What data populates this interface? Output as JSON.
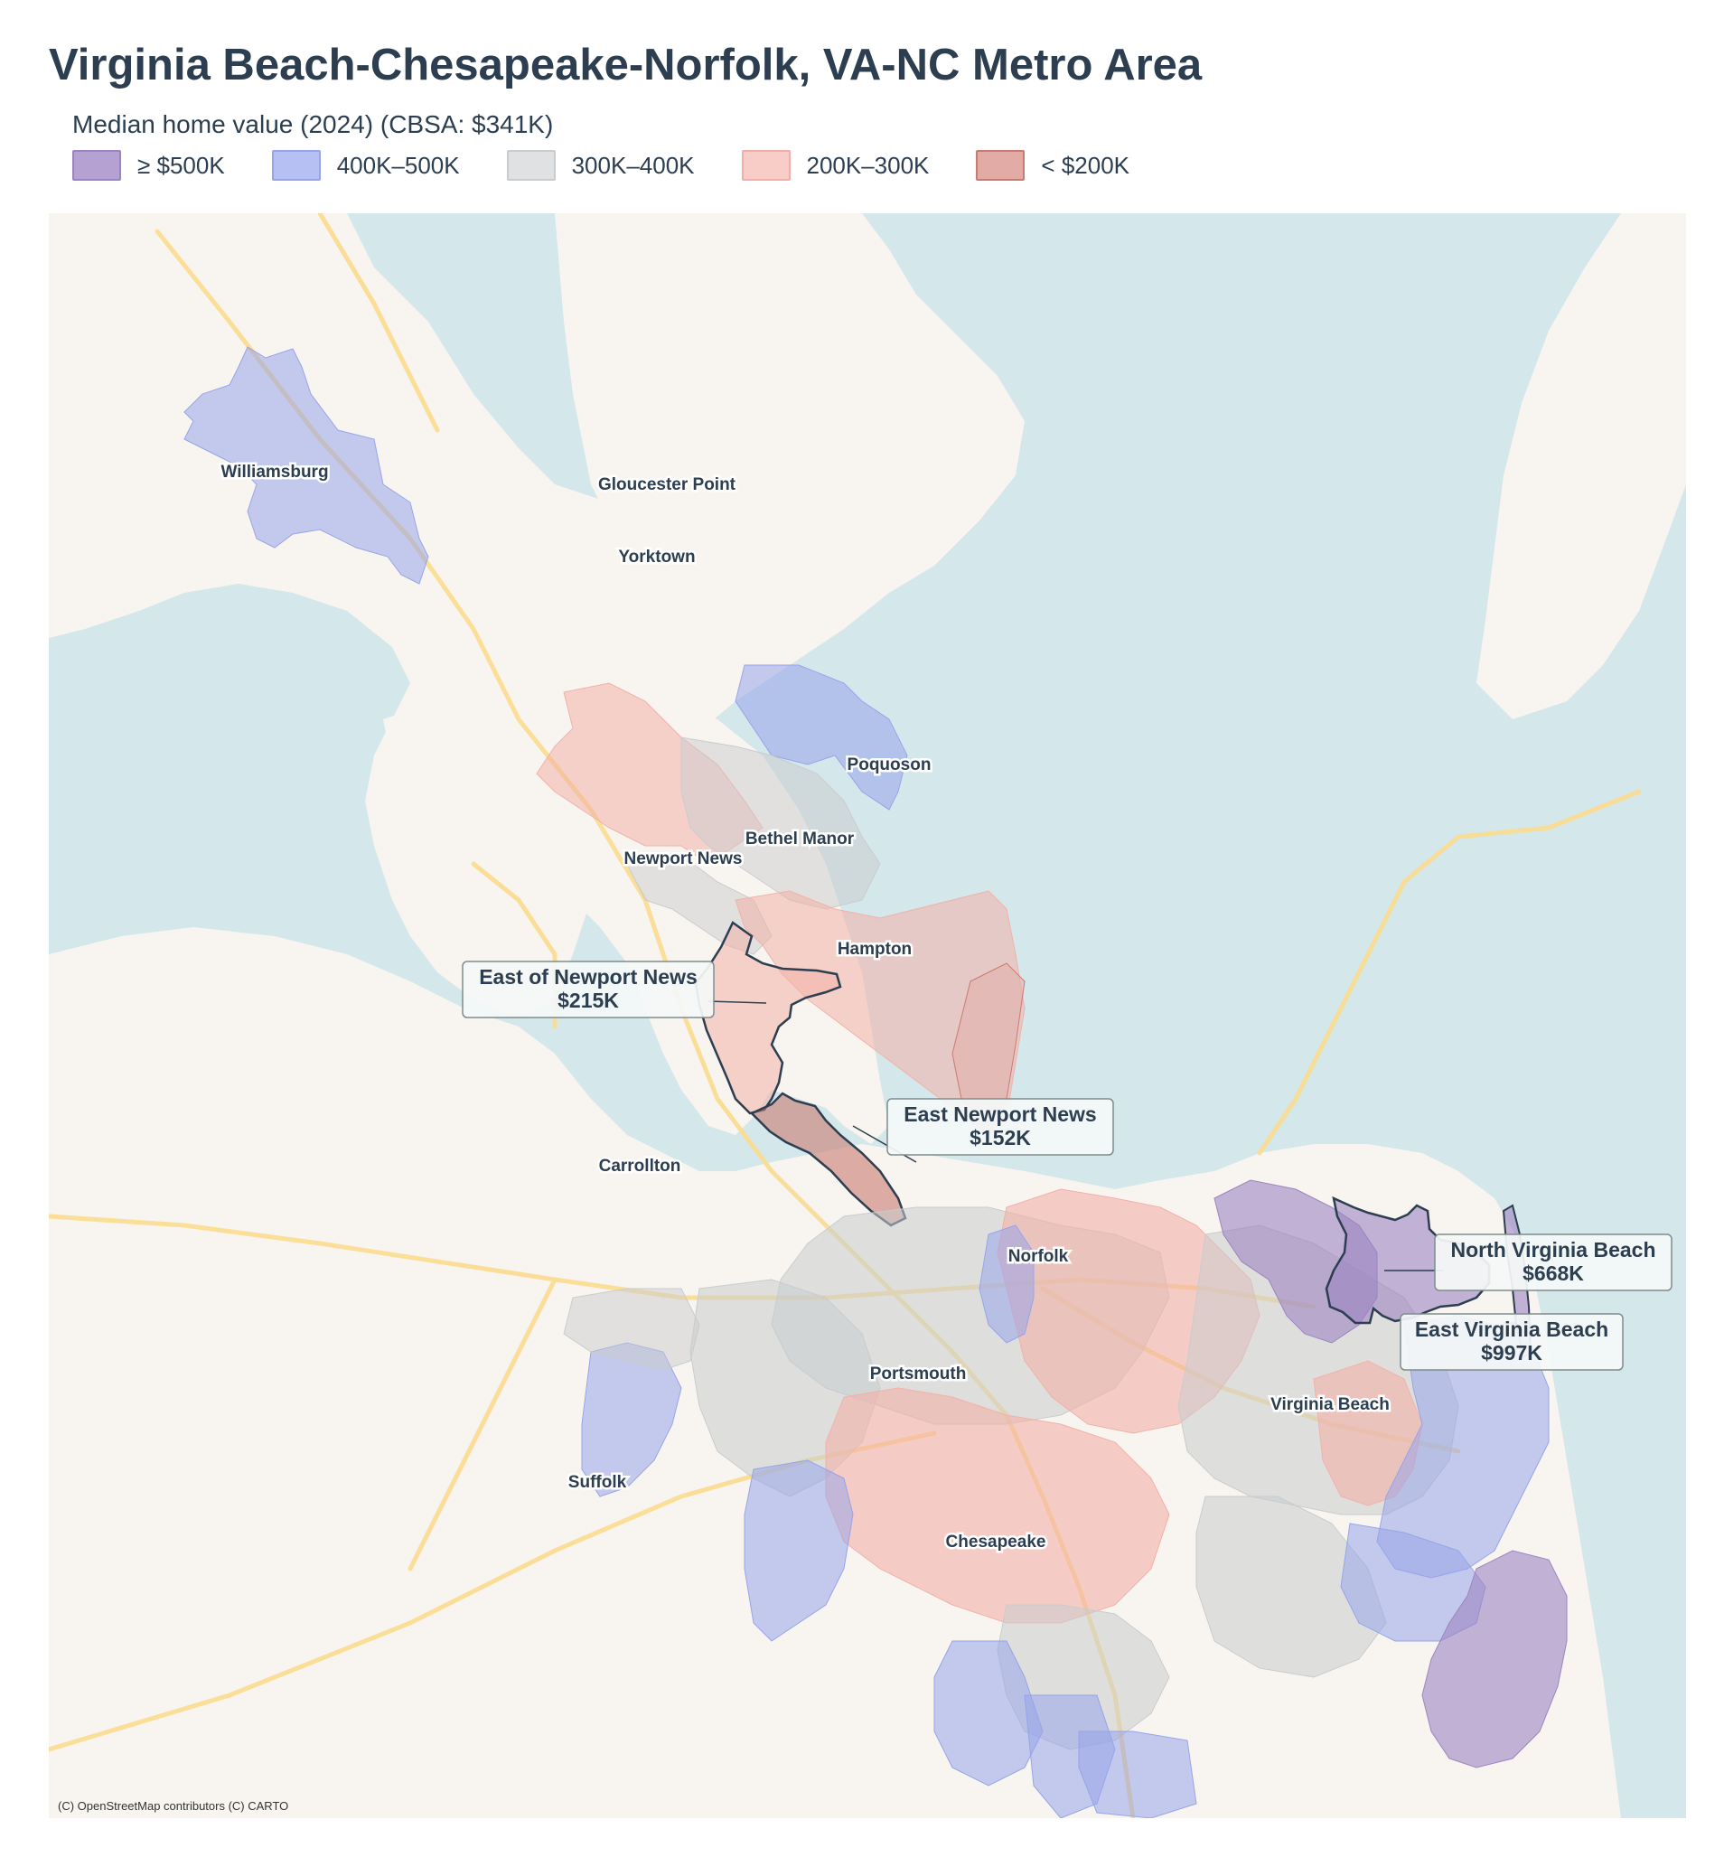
{
  "title": "Virginia Beach-Chesapeake-Norfolk, VA-NC Metro Area",
  "subtitle": "Median home value (2024)  (CBSA: $341K)",
  "legend": [
    {
      "label": "≥ $500K",
      "fill": "#b6a2d2",
      "stroke": "#9c84c2"
    },
    {
      "label": "400K–500K",
      "fill": "#b7c0f2",
      "stroke": "#97a4ea"
    },
    {
      "label": "300K–400K",
      "fill": "#dfe1e2",
      "stroke": "#c9ccce"
    },
    {
      "label": "200K–300K",
      "fill": "#f8cdc8",
      "stroke": "#f0aea6"
    },
    {
      "label": "< $200K",
      "fill": "#e2aba5",
      "stroke": "#c97b72"
    }
  ],
  "colors": {
    "water": "#d4e7ea",
    "land": "#f8f5f0",
    "road": "#fbdc8e",
    "purple": "#9c84c2",
    "blue": "#97a4ea",
    "gray": "#c9ccce",
    "pink": "#f3b1a8",
    "red": "#c97b72",
    "outline": "#2c3e50"
  },
  "places": [
    {
      "name": "Williamsburg"
    },
    {
      "name": "Gloucester Point"
    },
    {
      "name": "Yorktown"
    },
    {
      "name": "Poquoson"
    },
    {
      "name": "Bethel Manor"
    },
    {
      "name": "Newport News"
    },
    {
      "name": "Hampton"
    },
    {
      "name": "Carrollton"
    },
    {
      "name": "Norfolk"
    },
    {
      "name": "Portsmouth"
    },
    {
      "name": "Virginia Beach"
    },
    {
      "name": "Suffolk"
    },
    {
      "name": "Chesapeake"
    }
  ],
  "callouts": [
    {
      "name": "East of Newport News",
      "value": "$215K"
    },
    {
      "name": "East Newport News",
      "value": "$152K"
    },
    {
      "name": "North Virginia Beach",
      "value": "$668K"
    },
    {
      "name": "East Virginia Beach",
      "value": "$997K"
    }
  ],
  "attribution": "(C) OpenStreetMap contributors (C) CARTO"
}
